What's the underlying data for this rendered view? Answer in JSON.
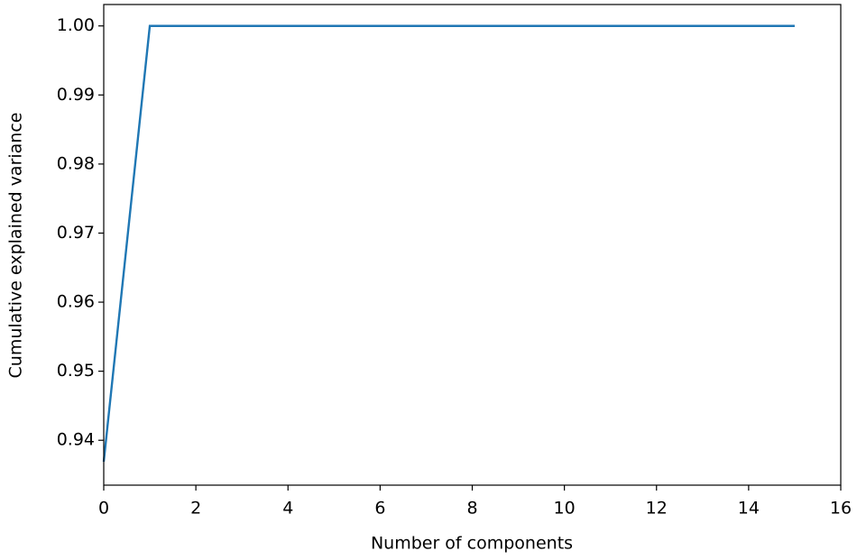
{
  "chart_data": {
    "type": "line",
    "x_label": "Number of components",
    "y_label": "Cumulative explained variance",
    "x": [
      0,
      1,
      2,
      3,
      4,
      5,
      6,
      7,
      8,
      9,
      10,
      11,
      12,
      13,
      14,
      15
    ],
    "series": [
      {
        "color": "#1f77b4",
        "values": [
          0.9369,
          1.0,
          1.0,
          1.0,
          1.0,
          1.0,
          1.0,
          1.0,
          1.0,
          1.0,
          1.0,
          1.0,
          1.0,
          1.0,
          1.0,
          1.0
        ]
      }
    ],
    "xlim": [
      0,
      16
    ],
    "xticks": [
      0,
      2,
      4,
      6,
      8,
      10,
      12,
      14,
      16
    ],
    "ylim": [
      0.9335,
      1.0031
    ],
    "yticks": [
      0.94,
      0.95,
      0.96,
      0.97,
      0.98,
      0.99,
      {
        "value": 1,
        "label": "1.00"
      }
    ]
  }
}
